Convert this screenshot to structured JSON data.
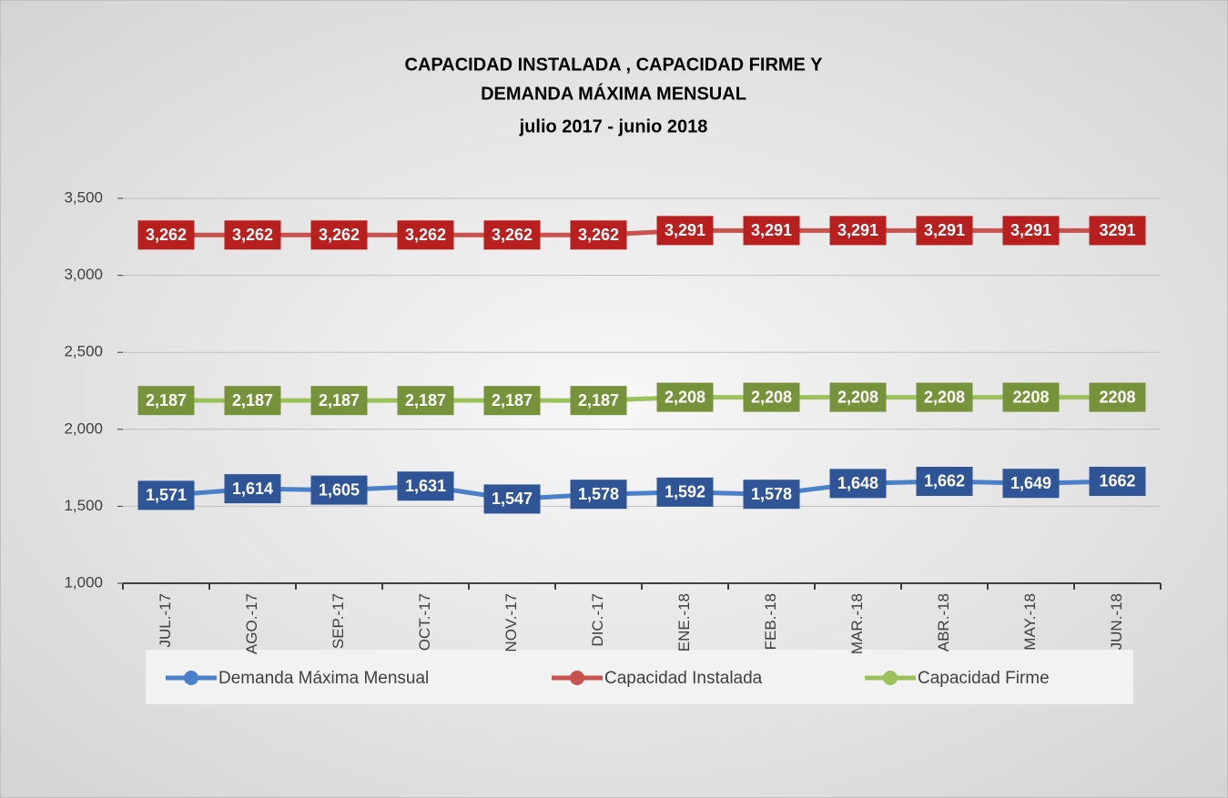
{
  "chart_data": {
    "type": "line",
    "title": [
      "CAPACIDAD  INSTALADA , CAPACIDAD  FIRME  Y",
      "DEMANDA  MÁXIMA  MENSUAL"
    ],
    "subtitle": "julio  2017    -    junio  2018",
    "categories": [
      "JUL.-17",
      "AGO.-17",
      "SEP.-17",
      "OCT.-17",
      "NOV.-17",
      "DIC.-17",
      "ENE.-18",
      "FEB.-18",
      "MAR.-18",
      "ABR.-18",
      "MAY.-18",
      "JUN.-18"
    ],
    "series": [
      {
        "name": "Demanda Máxima Mensual",
        "color": "#4a7fc9",
        "label_color": "#2f5597",
        "values": [
          1571,
          1614,
          1605,
          1631,
          1547,
          1578,
          1592,
          1578,
          1648,
          1662,
          1649,
          1662
        ],
        "value_labels": [
          "1,571",
          "1,614",
          "1,605",
          "1,631",
          "1,547",
          "1,578",
          "1,592",
          "1,578",
          "1,648",
          "1,662",
          "1,649",
          "1662"
        ]
      },
      {
        "name": "Capacidad Instalada",
        "color": "#c9514e",
        "label_color": "#b81f1f",
        "values": [
          3262,
          3262,
          3262,
          3262,
          3262,
          3262,
          3291,
          3291,
          3291,
          3291,
          3291,
          3291
        ],
        "value_labels": [
          "3,262",
          "3,262",
          "3,262",
          "3,262",
          "3,262",
          "3,262",
          "3,291",
          "3,291",
          "3,291",
          "3,291",
          "3,291",
          "3291"
        ]
      },
      {
        "name": "Capacidad Firme",
        "color": "#9bc25a",
        "label_color": "#76933c",
        "values": [
          2187,
          2187,
          2187,
          2187,
          2187,
          2187,
          2208,
          2208,
          2208,
          2208,
          2208,
          2208
        ],
        "value_labels": [
          "2,187",
          "2,187",
          "2,187",
          "2,187",
          "2,187",
          "2,187",
          "2,208",
          "2,208",
          "2,208",
          "2,208",
          "2208",
          "2208"
        ]
      }
    ],
    "ylim": [
      1000,
      3500
    ],
    "yticks": [
      {
        "value": 1000,
        "label": "1,000"
      },
      {
        "value": 1500,
        "label": "1,500"
      },
      {
        "value": 2000,
        "label": "2,000"
      },
      {
        "value": 2500,
        "label": "2,500"
      },
      {
        "value": 3000,
        "label": "3,000"
      },
      {
        "value": 3500,
        "label": "3,500"
      }
    ],
    "grid": true,
    "legend": "bottom"
  }
}
